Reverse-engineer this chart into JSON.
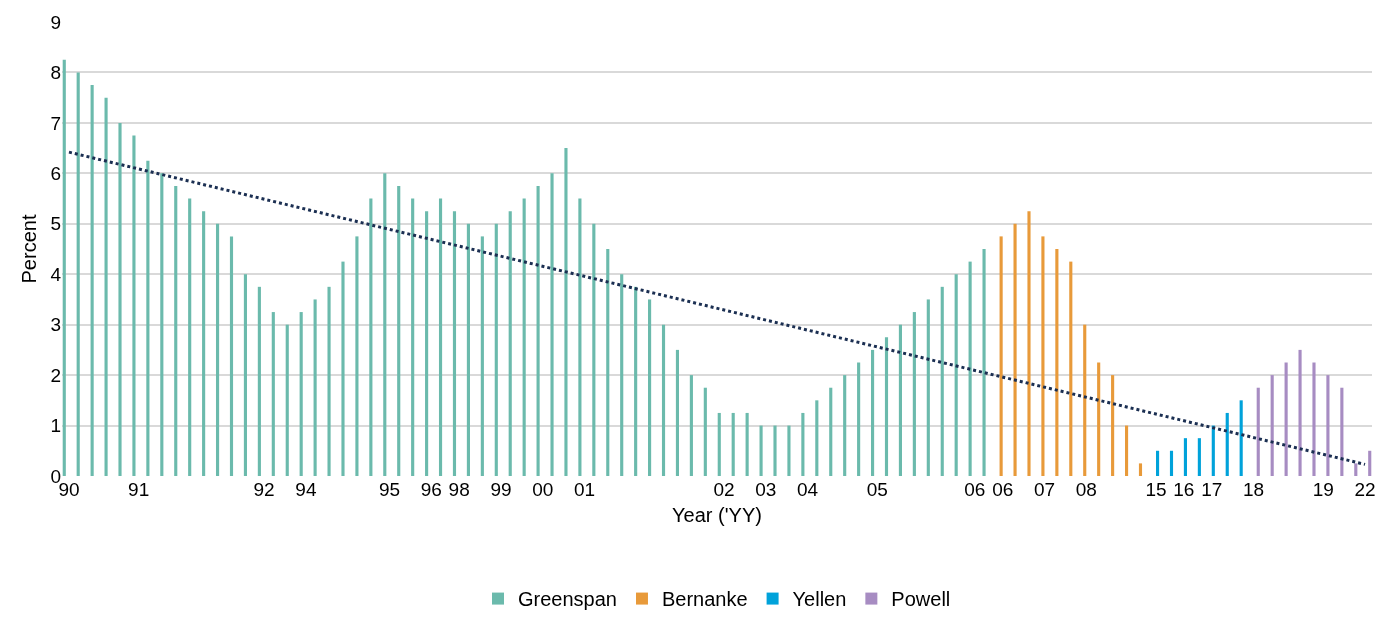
{
  "chart_data": {
    "type": "bar",
    "xlabel": "Year ('YY)",
    "ylabel": "Percent",
    "categories": [
      "90",
      null,
      null,
      null,
      null,
      "91",
      null,
      null,
      null,
      null,
      null,
      null,
      null,
      null,
      "92",
      null,
      null,
      "94",
      null,
      null,
      null,
      null,
      null,
      "95",
      null,
      null,
      "96",
      null,
      "98",
      null,
      null,
      "99",
      null,
      null,
      "00",
      null,
      null,
      "01",
      null,
      null,
      null,
      null,
      null,
      null,
      null,
      null,
      null,
      "02",
      null,
      null,
      "03",
      null,
      null,
      "04",
      null,
      null,
      null,
      null,
      "05",
      null,
      null,
      null,
      null,
      null,
      null,
      "06",
      null,
      "06",
      null,
      null,
      "07",
      null,
      null,
      "08",
      null,
      null,
      null,
      null,
      "15",
      null,
      "16",
      null,
      "17",
      null,
      null,
      "18",
      null,
      null,
      null,
      null,
      "19",
      null,
      null,
      "22"
    ],
    "series": [
      {
        "name": "Greenspan",
        "color": "#6bbaac",
        "values": [
          8.25,
          8,
          7.75,
          7.5,
          7,
          6.75,
          6.25,
          6,
          5.75,
          5.5,
          5.25,
          5,
          4.75,
          4,
          3.75,
          3.25,
          3,
          3.25,
          3.5,
          3.75,
          4.25,
          4.75,
          5.5,
          6,
          5.75,
          5.5,
          5.25,
          5.5,
          5.25,
          5,
          4.75,
          5,
          5.25,
          5.5,
          5.75,
          6,
          6.5,
          5.5,
          5,
          4.5,
          4,
          3.75,
          3.5,
          3,
          2.5,
          2,
          1.75,
          1.25,
          1.25,
          1.25,
          1,
          1,
          1,
          1.25,
          1.5,
          1.75,
          2,
          2.25,
          2.5,
          2.75,
          3,
          3.25,
          3.5,
          3.75,
          4,
          4.25,
          4.5,
          null,
          null,
          null,
          null,
          null,
          null,
          null,
          null,
          null,
          null,
          null,
          null,
          null,
          null,
          null,
          null,
          null,
          null,
          null,
          null,
          null,
          null,
          null,
          null,
          null,
          null,
          null
        ]
      },
      {
        "name": "Bernanke",
        "color": "#e89a3a",
        "values": [
          null,
          null,
          null,
          null,
          null,
          null,
          null,
          null,
          null,
          null,
          null,
          null,
          null,
          null,
          null,
          null,
          null,
          null,
          null,
          null,
          null,
          null,
          null,
          null,
          null,
          null,
          null,
          null,
          null,
          null,
          null,
          null,
          null,
          null,
          null,
          null,
          null,
          null,
          null,
          null,
          null,
          null,
          null,
          null,
          null,
          null,
          null,
          null,
          null,
          null,
          null,
          null,
          null,
          null,
          null,
          null,
          null,
          null,
          null,
          null,
          null,
          null,
          null,
          null,
          null,
          null,
          null,
          4.75,
          5,
          5.25,
          4.75,
          4.5,
          4.25,
          3,
          2.25,
          2,
          1,
          0.25,
          null,
          null,
          null,
          null,
          null,
          null,
          null,
          null,
          null,
          null,
          null,
          null,
          null,
          null,
          null,
          null
        ]
      },
      {
        "name": "Yellen",
        "color": "#00a2da",
        "values": [
          null,
          null,
          null,
          null,
          null,
          null,
          null,
          null,
          null,
          null,
          null,
          null,
          null,
          null,
          null,
          null,
          null,
          null,
          null,
          null,
          null,
          null,
          null,
          null,
          null,
          null,
          null,
          null,
          null,
          null,
          null,
          null,
          null,
          null,
          null,
          null,
          null,
          null,
          null,
          null,
          null,
          null,
          null,
          null,
          null,
          null,
          null,
          null,
          null,
          null,
          null,
          null,
          null,
          null,
          null,
          null,
          null,
          null,
          null,
          null,
          null,
          null,
          null,
          null,
          null,
          null,
          null,
          null,
          null,
          null,
          null,
          null,
          null,
          null,
          null,
          null,
          null,
          null,
          0.5,
          0.5,
          0.75,
          0.75,
          1,
          1.25,
          1.5,
          null,
          null,
          null,
          null,
          null,
          null,
          null,
          null,
          null
        ]
      },
      {
        "name": "Powell",
        "color": "#a78cc2",
        "values": [
          null,
          null,
          null,
          null,
          null,
          null,
          null,
          null,
          null,
          null,
          null,
          null,
          null,
          null,
          null,
          null,
          null,
          null,
          null,
          null,
          null,
          null,
          null,
          null,
          null,
          null,
          null,
          null,
          null,
          null,
          null,
          null,
          null,
          null,
          null,
          null,
          null,
          null,
          null,
          null,
          null,
          null,
          null,
          null,
          null,
          null,
          null,
          null,
          null,
          null,
          null,
          null,
          null,
          null,
          null,
          null,
          null,
          null,
          null,
          null,
          null,
          null,
          null,
          null,
          null,
          null,
          null,
          null,
          null,
          null,
          null,
          null,
          null,
          null,
          null,
          null,
          null,
          null,
          null,
          null,
          null,
          null,
          null,
          null,
          null,
          1.75,
          2,
          2.25,
          2.5,
          2.25,
          2,
          1.75,
          0.25,
          0.5
        ]
      },
      {
        "type": "line",
        "color": "#1b2f52",
        "line_style": "dotted",
        "x": [
          "90",
          "22"
        ],
        "values": [
          6.42,
          0.23
        ]
      }
    ],
    "ylim": [
      0,
      9
    ],
    "yticks": [
      0,
      1,
      2,
      3,
      4,
      5,
      6,
      7,
      8,
      9
    ],
    "grid": "y",
    "legend": "bottom",
    "marker": "none"
  }
}
